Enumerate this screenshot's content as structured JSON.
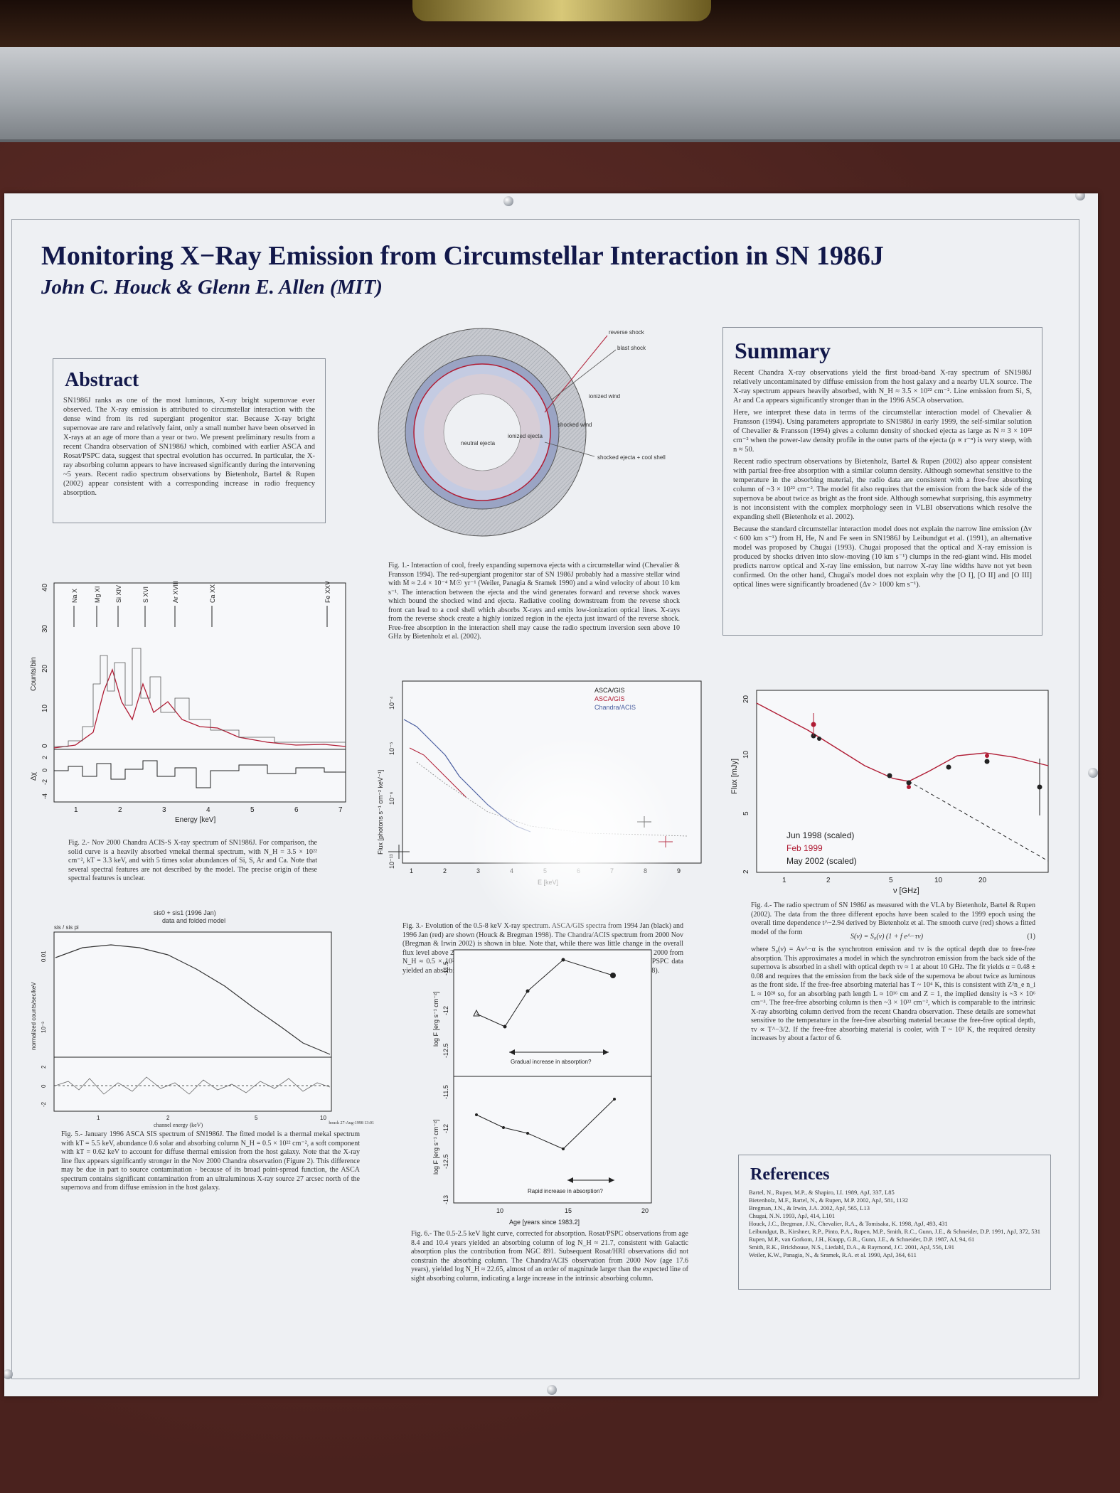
{
  "scene": {
    "colors": {
      "poster": "#eef0f3",
      "navy": "#12184a",
      "corkboard": "#4a2320",
      "red": "#b01c34"
    }
  },
  "poster": {
    "title": "Monitoring X−Ray Emission from Circumstellar Interaction in SN 1986J",
    "authors": "John C. Houck & Glenn E. Allen (MIT)"
  },
  "abstract": {
    "heading": "Abstract",
    "text": "SN1986J ranks as one of the most luminous, X-ray bright supernovae ever observed. The X-ray emission is attributed to circumstellar interaction with the dense wind from its red supergiant progenitor star. Because X-ray bright supernovae are rare and relatively faint, only a small number have been observed in X-rays at an age of more than a year or two. We present preliminary results from a recent Chandra observation of SN1986J which, combined with earlier ASCA and Rosat/PSPC data, suggest that spectral evolution has occurred. In particular, the X-ray absorbing column appears to have increased significantly during the intervening ~5 years. Recent radio spectrum observations by Bietenholz, Bartel & Rupen (2002) appear consistent with a corresponding increase in radio frequency absorption."
  },
  "fig1": {
    "labels": {
      "reverse_shock": "reverse shock",
      "blast_shock": "blast shock",
      "ionized_wind": "ionized wind",
      "shocked_wind": "shocked wind",
      "ionized_ejecta": "ionized ejecta",
      "neutral_ejecta": "neutral ejecta",
      "shocked_ejecta": "shocked ejecta + cool shell"
    },
    "caption": "Fig. 1.- Interaction of cool, freely expanding supernova ejecta with a circumstellar wind (Chevalier & Fransson 1994). The red-supergiant progenitor star of SN 1986J probably had a massive stellar wind with Ṁ ≈ 2.4 × 10⁻⁴ M☉ yr⁻¹ (Weiler, Panagia & Sramek 1990) and a wind velocity of about 10 km s⁻¹. The interaction between the ejecta and the wind generates forward and reverse shock waves which bound the shocked wind and ejecta. Radiative cooling downstream from the reverse shock front can lead to a cool shell which absorbs X-rays and emits low-ionization optical lines. X-rays from the reverse shock create a highly ionized region in the ejecta just inward of the reverse shock. Free-free absorption in the interaction shell may cause the radio spectrum inversion seen above 10 GHz by Bietenholz et al. (2002)."
  },
  "summary": {
    "heading": "Summary",
    "paragraphs": [
      "Recent Chandra X-ray observations yield the first broad-band X-ray spectrum of SN1986J relatively uncontaminated by diffuse emission from the host galaxy and a nearby ULX source. The X-ray spectrum appears heavily absorbed, with N_H ≈ 3.5 × 10²² cm⁻². Line emission from Si, S, Ar and Ca appears significantly stronger than in the 1996 ASCA observation.",
      "Here, we interpret these data in terms of the circumstellar interaction model of Chevalier & Fransson (1994). Using parameters appropriate to SN1986J in early 1999, the self-similar solution of Chevalier & Fransson (1994) gives a column density of shocked ejecta as large as N ≈ 3 × 10²² cm⁻² when the power-law density profile in the outer parts of the ejecta (ρ ∝ r⁻ⁿ) is very steep, with n ≈ 50.",
      "Recent radio spectrum observations by Bietenholz, Bartel & Rupen (2002) also appear consistent with partial free-free absorption with a similar column density. Although somewhat sensitive to the temperature in the absorbing material, the radio data are consistent with a free-free absorbing column of ~3 × 10²² cm⁻². The model fit also requires that the emission from the back side of the supernova be about twice as bright as the front side. Although somewhat surprising, this asymmetry is not inconsistent with the complex morphology seen in VLBI observations which resolve the expanding shell (Bietenholz et al. 2002).",
      "Because the standard circumstellar interaction model does not explain the narrow line emission (Δv < 600 km s⁻¹) from H, He, N and Fe seen in SN1986J by Leibundgut et al. (1991), an alternative model was proposed by Chugai (1993). Chugai proposed that the optical and X-ray emission is produced by shocks driven into slow-moving (10 km s⁻¹) clumps in the red-giant wind. His model predicts narrow optical and X-ray line emission, but narrow X-ray line widths have not yet been confirmed. On the other hand, Chugai's model does not explain why the [O I], [O II] and [O III] optical lines were significantly broadened (Δv > 1000 km s⁻¹)."
    ]
  },
  "fig2": {
    "ylabel": "Counts/bin",
    "reslabel": "Δχ",
    "xlabel": "Energy [keV]",
    "xticks": [
      "1",
      "2",
      "3",
      "4",
      "5",
      "6",
      "7"
    ],
    "yticks": [
      "0",
      "10",
      "20",
      "30",
      "40"
    ],
    "resticks": [
      "-4",
      "-2",
      "0",
      "2"
    ],
    "lines": [
      "Na X",
      "Mg XI",
      "Si XIV",
      "S XVI",
      "Ar XVIII",
      "Ca XX",
      "Fe XXV"
    ],
    "caption": "Fig. 2.- Nov 2000 Chandra ACIS-S X-ray spectrum of SN1986J. For comparison, the solid curve is a heavily absorbed vmekal thermal spectrum, with N_H = 3.5 × 10²² cm⁻², kT = 3.3 keV, and with 5 times solar abundances of Si, S, Ar and Ca. Note that several spectral features are not described by the model. The precise origin of these spectral features is unclear."
  },
  "fig3": {
    "ylabel": "Flux [photons s⁻¹ cm⁻² keV⁻¹]",
    "xlabel": "E [keV]",
    "xticks": [
      "1",
      "2",
      "3",
      "4",
      "5",
      "6",
      "7",
      "8",
      "9"
    ],
    "yticks": [
      "10⁻⁴",
      "10⁻⁵",
      "10⁻⁶",
      "10⁻¹¹"
    ],
    "legend": [
      "ASCA/GIS",
      "ASCA/GIS",
      "Chandra/ACIS"
    ],
    "caption": "Fig. 3.- Evolution of the 0.5-8 keV X-ray spectrum. ASCA/GIS spectra from 1994 Jan (black) and 1996 Jan (red) are shown (Houck & Bregman 1998). The Chandra/ACIS spectrum from 2000 Nov (Bregman & Irwin 2002) is shown in blue. Note that, while there was little change in the overall flux level above 2 keV, the absorbing column increased significantly between 1996 and 2000 from N_H ≈ 0.5 × 10²² cm⁻² to N_H ≈ 3.5 × 10²² cm⁻². For comparison, earlier Rosat/PSPC data yielded an absorbing column of N_H ≈ (0.3 − 0.7) × 10²² cm⁻² (Houck & Bregman 1998)."
  },
  "fig4": {
    "ylabel": "Flux [mJy]",
    "xlabel": "ν [GHz]",
    "xticks": [
      "1",
      "2",
      "5",
      "10",
      "20"
    ],
    "yticks": [
      "2",
      "5",
      "10",
      "20"
    ],
    "legend": [
      "Jun 1998 (scaled)",
      "Feb 1999",
      "May 2002 (scaled)"
    ],
    "caption": "Fig. 4.- The radio spectrum of SN 1986J as measured with the VLA by Bietenholz, Bartel & Rupen (2002). The data from the three different epochs have been scaled to the 1999 epoch using the overall time dependence t^−2.94 derived by Bietenholz et al. The smooth curve (red) shows a fitted model of the form",
    "equation": "S(ν) = S₀(ν) (1 + f e^−τν)",
    "equation_number": "(1)",
    "caption2": "where S₀(ν) = Aν^−α is the synchrotron emission and τν is the optical depth due to free-free absorption. This approximates a model in which the synchrotron emission from the back side of the supernova is absorbed in a shell with optical depth τν ≈ 1 at about 10 GHz. The fit yields α = 0.48 ± 0.08 and requires that the emission from the back side of the supernova be about twice as luminous as the front side. If the free-free absorbing material has T ~ 10⁴ K, this is consistent with Z²n_e n_i L ≈ 10²⁸ so, for an absorbing path length L ≈ 10¹⁶ cm and Z = 1, the implied density is ~3 × 10⁶ cm⁻³. The free-free absorbing column is then ~3 × 10²² cm⁻², which is comparable to the intrinsic X-ray absorbing column derived from the recent Chandra observation. These details are somewhat sensitive to the temperature in the free-free absorbing material because the free-free optical depth, τν ∝ T^−3/2. If the free-free absorbing material is cooler, with T ~ 10³ K, the required density increases by about a factor of 6."
  },
  "fig5": {
    "title": "sis0 + sis1 (1996 Jan)",
    "subtitle": "data and folded model",
    "corner": "sis / sis pi",
    "ylabel": "normalized counts/sec/keV",
    "xlabel": "channel energy (keV)",
    "xticks": [
      "1",
      "2",
      "5",
      "10"
    ],
    "yticks": [
      "0.01",
      "10⁻³"
    ],
    "resticks": [
      "2",
      "0",
      "-2"
    ],
    "stamp": "houck 27-Aug-1998 13:01",
    "caption": "Fig. 5.- January 1996 ASCA SIS spectrum of SN1986J. The fitted model is a thermal mekal spectrum with kT = 5.5 keV, abundance 0.6 solar and absorbing column N_H = 0.5 × 10²² cm⁻², a soft component with kT = 0.62 keV to account for diffuse thermal emission from the host galaxy. Note that the X-ray line flux appears significantly stronger in the Nov 2000 Chandra observation (Figure 2). This difference may be due in part to source contamination - because of its broad point-spread function, the ASCA spectrum contains significant contamination from an ultraluminous X-ray source 27 arcsec north of the supernova and from diffuse emission in the host galaxy."
  },
  "fig6": {
    "top_ylabel": "log F [erg s⁻¹ cm⁻²]",
    "bottom_ylabel": "log F [erg s⁻¹ cm⁻²]",
    "top_yticks": [
      "-11.5",
      "-12",
      "-12.5"
    ],
    "bottom_yticks": [
      "-11.5",
      "-12",
      "-12.5",
      "-13"
    ],
    "xlabel": "Age [years since 1983.2]",
    "xticks": [
      "10",
      "15",
      "20"
    ],
    "top_annotation": "Gradual increase in absorption?",
    "bottom_annotation": "Rapid increase in absorption?",
    "caption": "Fig. 6.- The 0.5-2.5 keV light curve, corrected for absorption. Rosat/PSPC observations from age 8.4 and 10.4 years yielded an absorbing column of log N_H ≈ 21.7, consistent with Galactic absorption plus the contribution from NGC 891. Subsequent Rosat/HRI observations did not constrain the absorbing column. The Chandra/ACIS observation from 2000 Nov (age 17.6 years), yielded log N_H ≈ 22.65, almost of an order of magnitude larger than the expected line of sight absorbing column, indicating a large increase in the intrinsic absorbing column."
  },
  "references": {
    "heading": "References",
    "items": [
      "Bartel, N., Rupen, M.P., & Shapiro, I.I. 1989, ApJ, 337, L85",
      "Bietenholz, M.F., Bartel, N., & Rupen, M.P. 2002, ApJ, 581, 1132",
      "Bregman, J.N., & Irwin, J.A. 2002, ApJ, 565, L13",
      "Chugai, N.N. 1993, ApJ, 414, L101",
      "Houck, J.C., Bregman, J.N., Chevalier, R.A., & Tomisaka, K. 1998, ApJ, 493, 431",
      "Leibundgut, B., Kirshner, R.P., Pinto, P.A., Rupen, M.P., Smith, R.C., Gunn, J.E., & Schneider, D.P. 1991, ApJ, 372, 531",
      "Rupen, M.P., van Gorkom, J.H., Knapp, G.R., Gunn, J.E., & Schneider, D.P. 1987, AJ, 94, 61",
      "Smith, R.K., Brickhouse, N.S., Liedahl, D.A., & Raymond, J.C. 2001, ApJ, 556, L91",
      "Weiler, K.W., Panagia, N., & Sramek, R.A. et al. 1990, ApJ, 364, 611"
    ]
  }
}
